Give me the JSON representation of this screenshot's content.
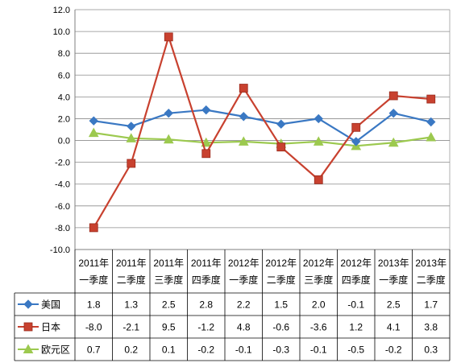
{
  "chart_data": {
    "type": "line",
    "title": "",
    "xlabel": "",
    "ylabel": "",
    "ylim": [
      -10,
      12
    ],
    "y_ticks": [
      "12.0",
      "10.0",
      "8.0",
      "6.0",
      "4.0",
      "2.0",
      "0.0",
      "-2.0",
      "-4.0",
      "-6.0",
      "-8.0",
      "-10.0"
    ],
    "grid": true,
    "legend": "data-table-left",
    "categories": [
      {
        "year": "2011年",
        "quarter": "一季度"
      },
      {
        "year": "2011年",
        "quarter": "二季度"
      },
      {
        "year": "2011年",
        "quarter": "三季度"
      },
      {
        "year": "2011年",
        "quarter": "四季度"
      },
      {
        "year": "2012年",
        "quarter": "一季度"
      },
      {
        "year": "2012年",
        "quarter": "二季度"
      },
      {
        "year": "2012年",
        "quarter": "三季度"
      },
      {
        "year": "2012年",
        "quarter": "四季度"
      },
      {
        "year": "2013年",
        "quarter": "一季度"
      },
      {
        "year": "2013年",
        "quarter": "二季度"
      }
    ],
    "series": [
      {
        "name": "美国",
        "color": "#3a78c3",
        "marker": "diamond",
        "values": [
          1.8,
          1.3,
          2.5,
          2.8,
          2.2,
          1.5,
          2.0,
          -0.1,
          2.5,
          1.7
        ],
        "labels": [
          "1.8",
          "1.3",
          "2.5",
          "2.8",
          "2.2",
          "1.5",
          "2.0",
          "-0.1",
          "2.5",
          "1.7"
        ]
      },
      {
        "name": "日本",
        "color": "#c8412f",
        "marker": "square",
        "values": [
          -8.0,
          -2.1,
          9.5,
          -1.2,
          4.8,
          -0.6,
          -3.6,
          1.2,
          4.1,
          3.8
        ],
        "labels": [
          "-8.0",
          "-2.1",
          "9.5",
          "-1.2",
          "4.8",
          "-0.6",
          "-3.6",
          "1.2",
          "4.1",
          "3.8"
        ]
      },
      {
        "name": "欧元区",
        "color": "#9cc94f",
        "marker": "triangle",
        "values": [
          0.7,
          0.2,
          0.1,
          -0.2,
          -0.1,
          -0.3,
          -0.1,
          -0.5,
          -0.2,
          0.3
        ],
        "labels": [
          "0.7",
          "0.2",
          "0.1",
          "-0.2",
          "-0.1",
          "-0.3",
          "-0.1",
          "-0.5",
          "-0.2",
          "0.3"
        ]
      }
    ]
  }
}
